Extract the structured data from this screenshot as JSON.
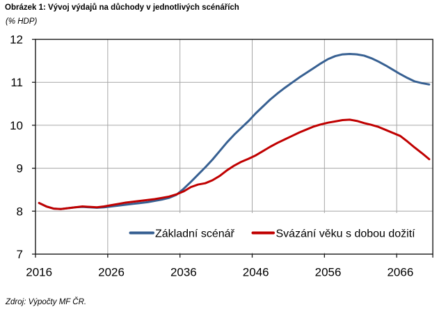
{
  "title": "Obrázek 1: Vývoj výdajů na důchody v jednotlivých scénářích",
  "subtitle": "(% HDP)",
  "source": "Zdroj: Výpočty MF ČR.",
  "colors": {
    "baseline_series": "#376092",
    "linked_series": "#C00000",
    "gridline": "#A6A6A6",
    "axis": "#161616",
    "text": "#000000",
    "background": "#FFFFFF"
  },
  "legend": {
    "position": "bottom-inside",
    "items": [
      {
        "label": "Základní scénář",
        "color": "#376092"
      },
      {
        "label": "Svázání věku s dobou dožití",
        "color": "#C00000"
      }
    ]
  },
  "chart_data": {
    "type": "line",
    "title": "Obrázek 1: Vývoj výdajů na důchody v jednotlivých scénářích",
    "ylabel": "(% HDP)",
    "x_start": 2016,
    "x_end": 2070,
    "x_ticks": [
      2016,
      2026,
      2036,
      2046,
      2056,
      2066
    ],
    "ylim": [
      7,
      12
    ],
    "y_ticks": [
      7,
      8,
      9,
      10,
      11,
      12
    ],
    "grid": true,
    "legend_position": "bottom-inside",
    "series": [
      {
        "name": "Základní scénář",
        "color": "#376092",
        "values": [
          8.19,
          8.11,
          8.06,
          8.05,
          8.07,
          8.09,
          8.1,
          8.09,
          8.08,
          8.09,
          8.11,
          8.13,
          8.15,
          8.17,
          8.19,
          8.21,
          8.24,
          8.27,
          8.31,
          8.38,
          8.52,
          8.68,
          8.85,
          9.02,
          9.2,
          9.4,
          9.6,
          9.78,
          9.94,
          10.1,
          10.28,
          10.44,
          10.6,
          10.74,
          10.87,
          10.99,
          11.11,
          11.22,
          11.33,
          11.44,
          11.54,
          11.61,
          11.65,
          11.66,
          11.65,
          11.62,
          11.56,
          11.48,
          11.39,
          11.29,
          11.19,
          11.1,
          11.02,
          10.98,
          10.95
        ]
      },
      {
        "name": "Svázání věku s dobou dožití",
        "color": "#C00000",
        "values": [
          8.19,
          8.11,
          8.06,
          8.05,
          8.07,
          8.09,
          8.11,
          8.1,
          8.09,
          8.11,
          8.14,
          8.17,
          8.2,
          8.22,
          8.24,
          8.26,
          8.28,
          8.31,
          8.34,
          8.39,
          8.46,
          8.56,
          8.62,
          8.65,
          8.72,
          8.82,
          8.95,
          9.06,
          9.15,
          9.22,
          9.3,
          9.4,
          9.5,
          9.59,
          9.67,
          9.75,
          9.83,
          9.9,
          9.97,
          10.02,
          10.06,
          10.09,
          10.12,
          10.13,
          10.1,
          10.05,
          10.01,
          9.96,
          9.89,
          9.82,
          9.75,
          9.62,
          9.48,
          9.35,
          9.21
        ]
      }
    ]
  }
}
